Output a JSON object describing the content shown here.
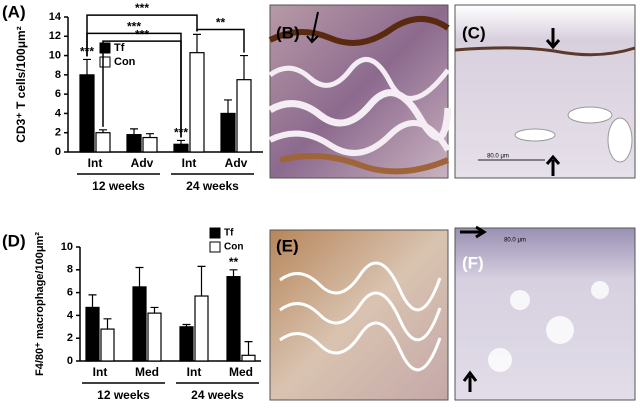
{
  "chart_data": [
    {
      "type": "bar",
      "label": "(A)",
      "ylabel": "CD3⁺ T cells/100μm²",
      "categories": [
        "Int",
        "Adv",
        "Int",
        "Adv"
      ],
      "groups": [
        "12 weeks",
        "24 weeks"
      ],
      "ylim": [
        0,
        14
      ],
      "yticks": [
        0,
        2,
        4,
        6,
        8,
        10,
        12,
        14
      ],
      "series": [
        {
          "name": "Tf",
          "color": "#000000",
          "values": [
            8,
            1.8,
            0.8,
            4
          ],
          "errors": [
            1.6,
            0.6,
            0.4,
            1.4
          ]
        },
        {
          "name": "Con",
          "color": "#ffffff",
          "values": [
            2,
            1.5,
            10.3,
            7.5
          ],
          "errors": [
            0.3,
            0.4,
            1.9,
            2.5
          ]
        }
      ],
      "stars": [
        {
          "text": "***",
          "series": 0,
          "category": 0
        },
        {
          "text": "***",
          "series": 0,
          "category": 2
        }
      ],
      "brackets": [
        {
          "text": "***",
          "y": 14.2,
          "from": {
            "series": 0,
            "category": 0
          },
          "to": {
            "series": 1,
            "category": 2
          }
        },
        {
          "text": "***",
          "y": 12.3,
          "from": {
            "series": 0,
            "category": 0
          },
          "to": {
            "series": 0,
            "category": 2
          }
        },
        {
          "text": "***",
          "y": 11.5,
          "from": {
            "series": 1,
            "category": 0
          },
          "to": {
            "series": 0,
            "category": 2
          }
        },
        {
          "text": "**",
          "y": 12.7,
          "from": {
            "series": 1,
            "category": 2
          },
          "to": {
            "series": 1,
            "category": 3
          }
        }
      ]
    },
    {
      "type": "bar",
      "label": "(D)",
      "ylabel": "F4/80⁺ macrophage/100μm²",
      "categories": [
        "Int",
        "Med",
        "Int",
        "Med"
      ],
      "groups": [
        "12 weeks",
        "24 weeks"
      ],
      "ylim": [
        0,
        10
      ],
      "yticks": [
        0,
        2,
        4,
        6,
        8,
        10
      ],
      "series": [
        {
          "name": "Tf",
          "color": "#000000",
          "values": [
            4.7,
            6.5,
            3.0,
            7.4
          ],
          "errors": [
            1.1,
            1.7,
            0.2,
            0.6
          ]
        },
        {
          "name": "Con",
          "color": "#ffffff",
          "values": [
            2.8,
            4.2,
            5.7,
            0.5
          ],
          "errors": [
            0.9,
            0.5,
            2.6,
            1.2
          ]
        }
      ],
      "stars": [
        {
          "text": "**",
          "series": 0,
          "category": 3
        }
      ],
      "brackets": []
    }
  ],
  "panels": [
    {
      "label": "(B)"
    },
    {
      "label": "(C)",
      "scale_bar": "80.0 μm"
    },
    {
      "label": "(E)"
    },
    {
      "label": "(F)",
      "scale_bar": "80.0 μm"
    }
  ]
}
